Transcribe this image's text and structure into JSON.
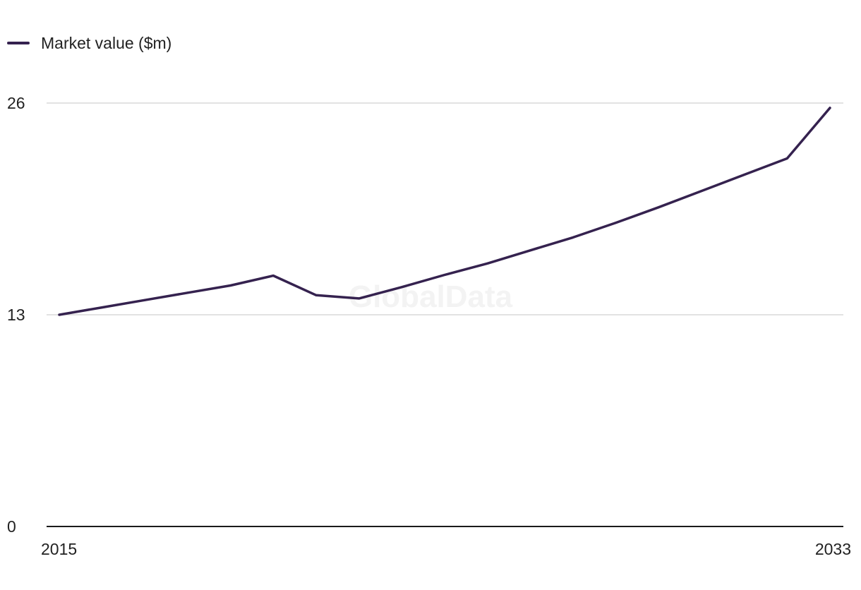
{
  "legend": {
    "label": "Market value ($m)"
  },
  "watermark": "GlobalData",
  "colors": {
    "series": "#35224f",
    "grid": "#d9d9d9",
    "axis": "#1a1a1a"
  },
  "chart_data": {
    "type": "line",
    "title": "",
    "xlabel": "",
    "ylabel": "",
    "x": [
      2015,
      2016,
      2017,
      2018,
      2019,
      2020,
      2021,
      2022,
      2023,
      2024,
      2025,
      2026,
      2027,
      2028,
      2029,
      2030,
      2031,
      2032,
      2033
    ],
    "series": [
      {
        "name": "Market value ($m)",
        "values": [
          13.0,
          13.45,
          13.9,
          14.35,
          14.8,
          15.4,
          14.2,
          14.0,
          14.7,
          15.45,
          16.15,
          16.95,
          17.75,
          18.65,
          19.6,
          20.6,
          21.6,
          22.6,
          25.7
        ]
      }
    ],
    "ylim": [
      0,
      26
    ],
    "yticks": [
      0,
      13,
      26
    ],
    "xtick_labels": [
      "2015",
      "2033"
    ],
    "grid": true,
    "legend_position": "top-left"
  }
}
